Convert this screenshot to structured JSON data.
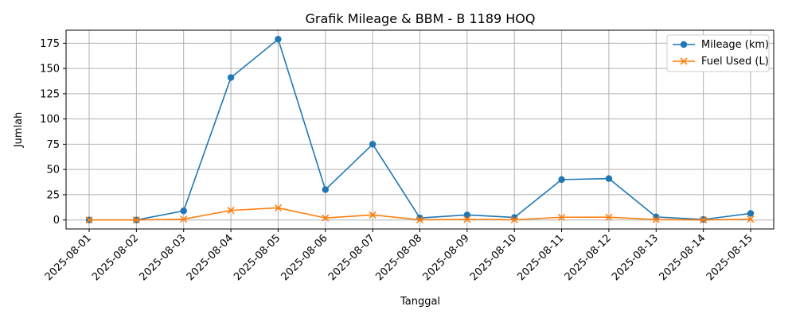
{
  "chart_data": {
    "type": "line",
    "title": "Grafik Mileage & BBM - B 1189 HOQ",
    "xlabel": "Tanggal",
    "ylabel": "Jumlah",
    "categories": [
      "2025-08-01",
      "2025-08-02",
      "2025-08-03",
      "2025-08-04",
      "2025-08-05",
      "2025-08-06",
      "2025-08-07",
      "2025-08-08",
      "2025-08-09",
      "2025-08-10",
      "2025-08-11",
      "2025-08-12",
      "2025-08-13",
      "2025-08-14",
      "2025-08-15"
    ],
    "ylim": [
      -8.9,
      187.9
    ],
    "yticks": [
      0,
      25,
      50,
      75,
      100,
      125,
      150,
      175
    ],
    "grid": true,
    "legend_position": "top-right",
    "series": [
      {
        "name": "Mileage (km)",
        "color": "#1f77b4",
        "marker": "circle",
        "values": [
          0,
          0,
          9,
          141,
          179,
          30,
          75,
          2,
          5,
          2.5,
          40,
          41,
          3,
          0.5,
          6.5
        ]
      },
      {
        "name": "Fuel Used (L)",
        "color": "#ff7f0e",
        "marker": "x",
        "values": [
          0,
          0,
          0.8,
          9.5,
          12,
          2,
          5,
          0.2,
          0.6,
          0.2,
          2.7,
          2.8,
          0.4,
          0,
          0.8
        ]
      }
    ]
  }
}
